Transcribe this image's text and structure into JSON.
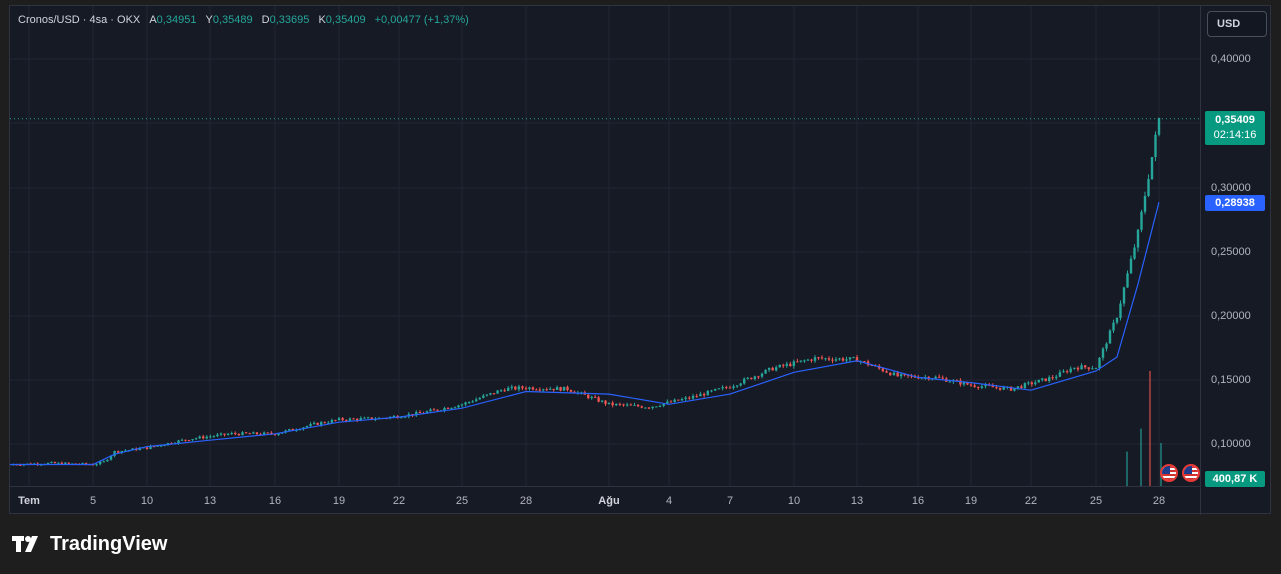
{
  "legend": {
    "symbol": "Cronos/USD · 4sa · OKX",
    "open_label": "A",
    "open": "0,34951",
    "high_label": "Y",
    "high": "0,35489",
    "low_label": "D",
    "low": "0,33695",
    "close_label": "K",
    "close": "0,35409",
    "change": "+0,00477 (+1,37%)"
  },
  "currency_button": "USD",
  "price_tag": {
    "price": "0,35409",
    "countdown": "02:14:16"
  },
  "ma_tag": "0,28938",
  "volume_tag": "400,87 K",
  "price_ticks": [
    "0,40000",
    "0,30000",
    "0,25000",
    "0,20000",
    "0,15000",
    "0,10000"
  ],
  "time_labels": [
    "Tem",
    "5",
    "10",
    "13",
    "16",
    "19",
    "22",
    "25",
    "28",
    "Ağu",
    "4",
    "7",
    "10",
    "13",
    "16",
    "19",
    "22",
    "25",
    "28"
  ],
  "brand": "TradingView",
  "colors": {
    "up": "#26a69a",
    "down": "#ef5350",
    "ma": "#2962ff",
    "background": "#161a25",
    "grid": "#232632"
  },
  "chart_data": {
    "type": "candlestick",
    "timeframe": "4h",
    "yscale": "linear",
    "ylim": [
      0.065,
      0.43
    ],
    "grid": true,
    "series": [
      {
        "name": "Cronos/USD",
        "kind": "close",
        "x": [
          "Tem 1",
          "Tem 3",
          "Tem 5",
          "Tem 6",
          "Tem 7",
          "Tem 8",
          "Tem 10",
          "Tem 12",
          "Tem 14",
          "Tem 16",
          "Tem 18",
          "Tem 19",
          "Tem 21",
          "Tem 23",
          "Tem 25",
          "Tem 27",
          "Tem 28",
          "Tem 30",
          "Ağu 1",
          "Ağu 3",
          "Ağu 5",
          "Ağu 7",
          "Ağu 9",
          "Ağu 11",
          "Ağu 13",
          "Ağu 15",
          "Ağu 17",
          "Ağu 19",
          "Ağu 21",
          "Ağu 23",
          "Ağu 24",
          "Ağu 25",
          "Ağu 26",
          "Ağu 27",
          "Ağu 28"
        ],
        "values": [
          0.084,
          0.085,
          0.084,
          0.086,
          0.094,
          0.095,
          0.097,
          0.104,
          0.108,
          0.108,
          0.116,
          0.119,
          0.12,
          0.124,
          0.131,
          0.143,
          0.144,
          0.143,
          0.131,
          0.129,
          0.136,
          0.145,
          0.159,
          0.167,
          0.166,
          0.153,
          0.152,
          0.146,
          0.143,
          0.152,
          0.16,
          0.16,
          0.2,
          0.265,
          0.354
        ]
      },
      {
        "name": "MA",
        "kind": "line",
        "x": [
          "Tem 1",
          "Tem 5",
          "Tem 7",
          "Tem 10",
          "Tem 13",
          "Tem 16",
          "Tem 19",
          "Tem 22",
          "Tem 25",
          "Tem 28",
          "Ağu 1",
          "Ağu 4",
          "Ağu 7",
          "Ağu 10",
          "Ağu 13",
          "Ağu 16",
          "Ağu 19",
          "Ağu 22",
          "Ağu 25",
          "Ağu 26",
          "Ağu 27",
          "Ağu 28"
        ],
        "values": [
          0.084,
          0.084,
          0.092,
          0.098,
          0.103,
          0.108,
          0.117,
          0.121,
          0.128,
          0.141,
          0.139,
          0.131,
          0.139,
          0.156,
          0.165,
          0.152,
          0.148,
          0.142,
          0.157,
          0.168,
          0.225,
          0.289
        ]
      },
      {
        "name": "Volume",
        "kind": "volume",
        "x": [
          "Ağu 26",
          "Ağu 27",
          "Ağu 27b",
          "Ağu 28"
        ],
        "values": [
          120000,
          200000,
          400870,
          150000
        ]
      }
    ],
    "last_price": 0.35409,
    "ma_value": 0.28938
  }
}
